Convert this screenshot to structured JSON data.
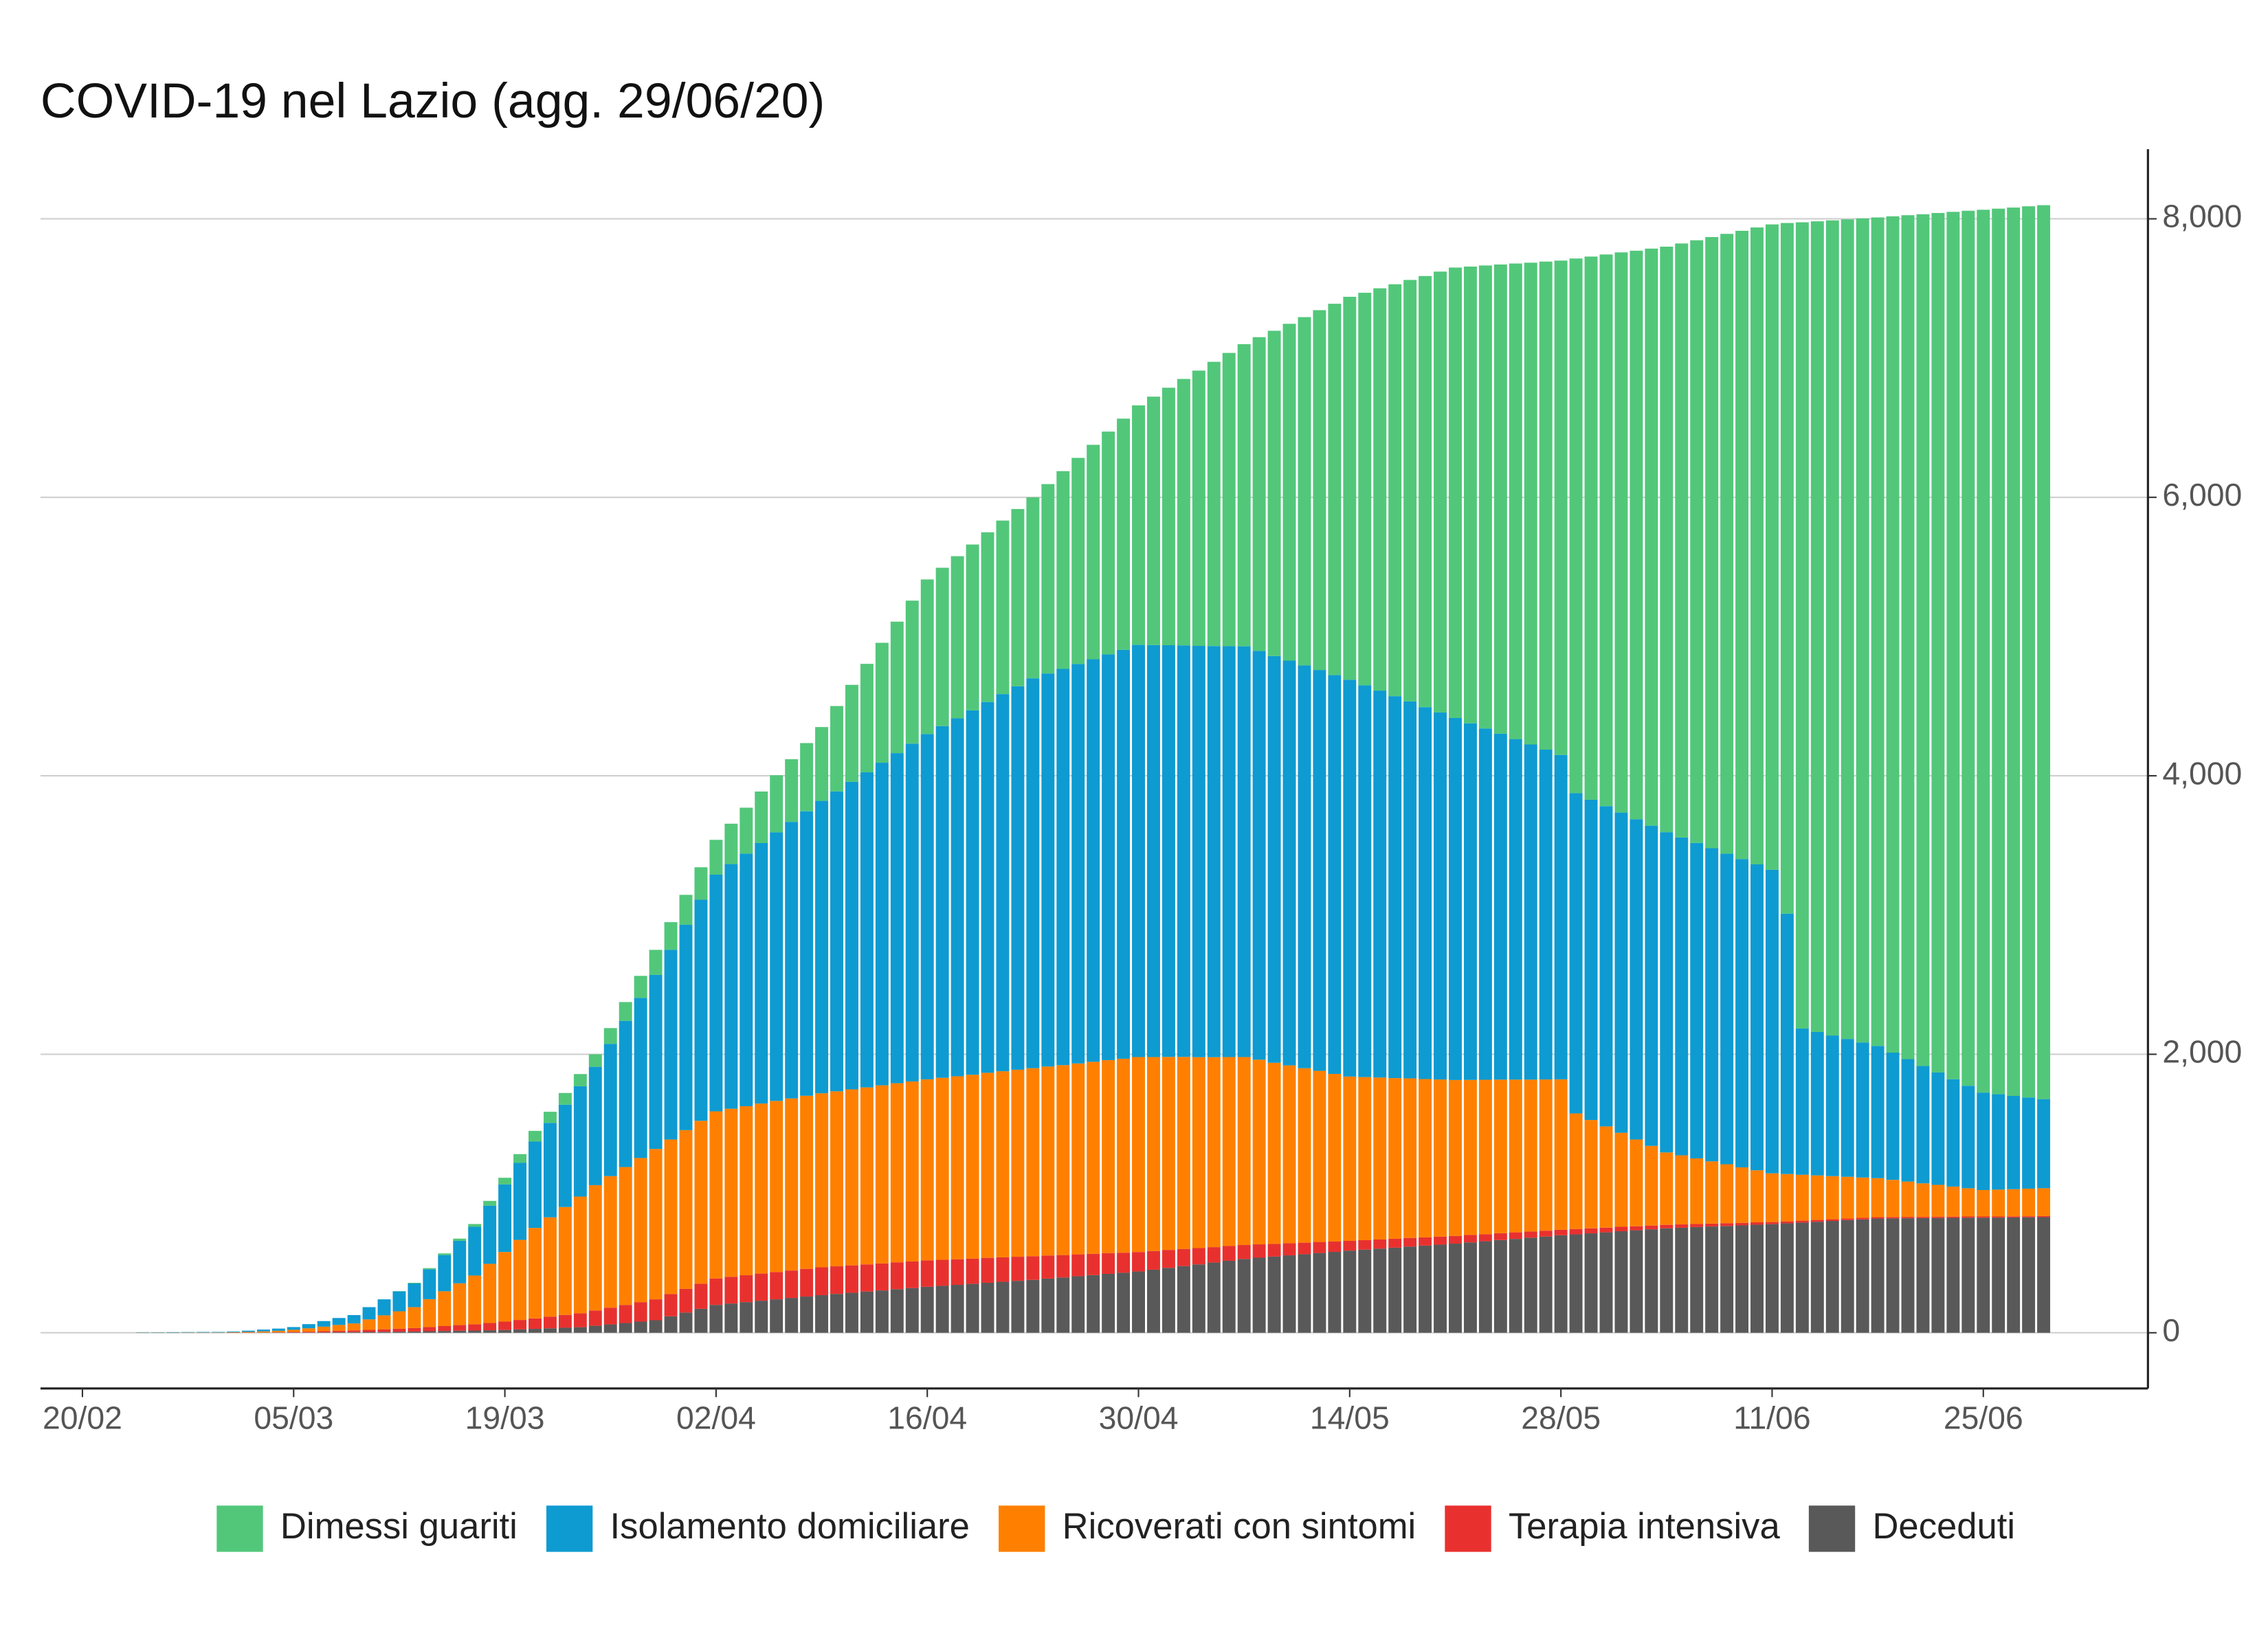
{
  "chart_data": {
    "type": "stacked_bar",
    "title": "COVID-19 nel Lazio (agg. 29/06/20)",
    "categories": [
      "20/02",
      "21/02",
      "22/02",
      "23/02",
      "24/02",
      "25/02",
      "26/02",
      "27/02",
      "28/02",
      "29/02",
      "01/03",
      "02/03",
      "03/03",
      "04/03",
      "05/03",
      "06/03",
      "07/03",
      "08/03",
      "09/03",
      "10/03",
      "11/03",
      "12/03",
      "13/03",
      "14/03",
      "15/03",
      "16/03",
      "17/03",
      "18/03",
      "19/03",
      "20/03",
      "21/03",
      "22/03",
      "23/03",
      "24/03",
      "25/03",
      "26/03",
      "27/03",
      "28/03",
      "29/03",
      "30/03",
      "31/03",
      "01/04",
      "02/04",
      "03/04",
      "04/04",
      "05/04",
      "06/04",
      "07/04",
      "08/04",
      "09/04",
      "10/04",
      "11/04",
      "12/04",
      "13/04",
      "14/04",
      "15/04",
      "16/04",
      "17/04",
      "18/04",
      "19/04",
      "20/04",
      "21/04",
      "22/04",
      "23/04",
      "24/04",
      "25/04",
      "26/04",
      "27/04",
      "28/04",
      "29/04",
      "30/04",
      "01/05",
      "02/05",
      "03/05",
      "04/05",
      "05/05",
      "06/05",
      "07/05",
      "08/05",
      "09/05",
      "10/05",
      "11/05",
      "12/05",
      "13/05",
      "14/05",
      "15/05",
      "16/05",
      "17/05",
      "18/05",
      "19/05",
      "20/05",
      "21/05",
      "22/05",
      "23/05",
      "24/05",
      "25/05",
      "26/05",
      "27/05",
      "28/05",
      "29/05",
      "30/05",
      "31/05",
      "01/06",
      "02/06",
      "03/06",
      "04/06",
      "05/06",
      "06/06",
      "07/06",
      "08/06",
      "09/06",
      "10/06",
      "11/06",
      "12/06",
      "13/06",
      "14/06",
      "15/06",
      "16/06",
      "17/06",
      "18/06",
      "19/06",
      "20/06",
      "21/06",
      "22/06",
      "23/06",
      "24/06",
      "25/06",
      "26/06",
      "27/06",
      "28/06",
      "29/06"
    ],
    "xticks": [
      "20/02",
      "05/03",
      "19/03",
      "02/04",
      "16/04",
      "30/04",
      "14/05",
      "28/05",
      "11/06",
      "25/06"
    ],
    "ylim": [
      -400,
      8500
    ],
    "yticks": [
      0,
      {
        "value": 2000,
        "label": "2,000"
      },
      {
        "value": 4000,
        "label": "4,000"
      },
      {
        "value": 6000,
        "label": "6,000"
      },
      {
        "value": 8000,
        "label": "8,000"
      }
    ],
    "y_axis_side": "right",
    "grid": true,
    "legend_position": "bottom",
    "series": [
      {
        "name": "Dimessi guariti",
        "color": "#52c77a",
        "values": [
          null,
          null,
          null,
          null,
          0,
          0,
          0,
          0,
          0,
          0,
          0,
          0,
          0,
          0,
          0,
          0,
          0,
          0,
          0,
          0,
          0,
          2,
          5,
          8,
          12,
          16,
          20,
          34,
          48,
          63,
          77,
          80,
          84,
          87,
          90,
          113,
          135,
          158,
          180,
          198,
          215,
          233,
          250,
          290,
          330,
          370,
          410,
          450,
          490,
          530,
          613,
          696,
          779,
          861,
          944,
          1027,
          1110,
          1137,
          1164,
          1191,
          1219,
          1246,
          1273,
          1300,
          1360,
          1420,
          1480,
          1540,
          1600,
          1660,
          1720,
          1784,
          1849,
          1913,
          1977,
          2041,
          2106,
          2170,
          2253,
          2336,
          2419,
          2501,
          2584,
          2667,
          2750,
          2819,
          2889,
          2958,
          3027,
          3096,
          3166,
          3235,
          3280,
          3325,
          3370,
          3415,
          3460,
          3505,
          3550,
          3840,
          3901,
          3962,
          4023,
          4083,
          4144,
          4205,
          4266,
          4328,
          4389,
          4451,
          4512,
          4574,
          4635,
          4960,
          5790,
          5822,
          5854,
          5886,
          5918,
          5950,
          6006,
          6061,
          6117,
          6173,
          6229,
          6284,
          6340,
          6360,
          6380,
          6400,
          6420
        ]
      },
      {
        "name": "Isolamento domiciliare",
        "color": "#0e9bd1",
        "values": [
          null,
          null,
          null,
          null,
          2,
          2,
          3,
          3,
          4,
          4,
          5,
          9,
          13,
          16,
          20,
          30,
          40,
          50,
          60,
          88,
          115,
          143,
          170,
          215,
          260,
          305,
          350,
          418,
          485,
          553,
          620,
          678,
          735,
          793,
          850,
          950,
          1050,
          1150,
          1250,
          1363,
          1475,
          1588,
          1700,
          1757,
          1814,
          1871,
          1929,
          1986,
          2043,
          2100,
          2154,
          2209,
          2263,
          2317,
          2371,
          2426,
          2480,
          2526,
          2571,
          2617,
          2663,
          2709,
          2754,
          2800,
          2823,
          2846,
          2869,
          2891,
          2914,
          2937,
          2960,
          2959,
          2957,
          2956,
          2954,
          2953,
          2951,
          2950,
          2936,
          2921,
          2907,
          2893,
          2879,
          2864,
          2850,
          2814,
          2779,
          2743,
          2707,
          2671,
          2636,
          2600,
          2561,
          2523,
          2484,
          2446,
          2407,
          2369,
          2330,
          2300,
          2300,
          2300,
          2300,
          2300,
          2300,
          2300,
          2283,
          2266,
          2249,
          2231,
          2214,
          2197,
          2180,
          1870,
          1050,
          1030,
          1010,
          990,
          970,
          950,
          914,
          879,
          843,
          807,
          771,
          736,
          700,
          685,
          670,
          655,
          640
        ]
      },
      {
        "name": "Ricoverati con sintomi",
        "color": "#ff8000",
        "values": [
          null,
          null,
          null,
          null,
          1,
          1,
          1,
          2,
          2,
          2,
          3,
          5,
          8,
          11,
          15,
          24,
          33,
          42,
          50,
          75,
          100,
          125,
          150,
          200,
          250,
          300,
          350,
          425,
          500,
          575,
          650,
          713,
          775,
          838,
          900,
          945,
          990,
          1035,
          1080,
          1110,
          1140,
          1170,
          1200,
          1207,
          1214,
          1221,
          1229,
          1236,
          1243,
          1250,
          1257,
          1264,
          1271,
          1279,
          1286,
          1293,
          1300,
          1307,
          1314,
          1321,
          1329,
          1336,
          1343,
          1350,
          1357,
          1364,
          1371,
          1379,
          1386,
          1393,
          1400,
          1393,
          1386,
          1379,
          1371,
          1364,
          1357,
          1350,
          1326,
          1301,
          1277,
          1253,
          1229,
          1204,
          1180,
          1171,
          1163,
          1154,
          1146,
          1137,
          1129,
          1120,
          1114,
          1109,
          1103,
          1097,
          1091,
          1086,
          1080,
          830,
          778,
          727,
          675,
          623,
          572,
          520,
          496,
          471,
          447,
          423,
          399,
          374,
          350,
          340,
          330,
          320,
          310,
          300,
          290,
          280,
          267,
          254,
          241,
          229,
          216,
          203,
          190,
          193,
          195,
          198,
          200
        ]
      },
      {
        "name": "Terapia intensiva",
        "color": "#e8312f",
        "values": [
          null,
          null,
          null,
          null,
          0,
          0,
          0,
          0,
          0,
          0,
          1,
          1,
          1,
          2,
          4,
          6,
          8,
          10,
          12,
          15,
          18,
          21,
          25,
          30,
          35,
          40,
          45,
          52,
          60,
          68,
          75,
          84,
          92,
          100,
          110,
          120,
          130,
          140,
          150,
          160,
          170,
          180,
          190,
          192,
          193,
          195,
          196,
          197,
          199,
          200,
          198,
          197,
          195,
          194,
          193,
          191,
          190,
          187,
          184,
          181,
          179,
          176,
          173,
          170,
          166,
          161,
          157,
          153,
          149,
          144,
          140,
          134,
          129,
          123,
          117,
          111,
          106,
          100,
          96,
          91,
          87,
          83,
          79,
          74,
          70,
          68,
          66,
          64,
          62,
          59,
          57,
          55,
          53,
          51,
          49,
          47,
          44,
          42,
          40,
          38,
          36,
          34,
          32,
          29,
          27,
          25,
          24,
          22,
          21,
          20,
          18,
          17,
          15,
          14,
          14,
          13,
          12,
          11,
          11,
          10,
          10,
          10,
          9,
          9,
          9,
          9,
          9,
          8,
          8,
          8,
          8
        ]
      },
      {
        "name": "Deceduti",
        "color": "#595959",
        "values": [
          null,
          null,
          null,
          null,
          0,
          0,
          0,
          0,
          0,
          0,
          0,
          0,
          1,
          1,
          2,
          2,
          3,
          4,
          5,
          6,
          7,
          8,
          9,
          11,
          13,
          15,
          16,
          18,
          20,
          24,
          28,
          32,
          36,
          40,
          50,
          60,
          70,
          80,
          90,
          118,
          145,
          172,
          200,
          210,
          220,
          230,
          240,
          250,
          260,
          270,
          279,
          287,
          296,
          304,
          313,
          321,
          330,
          337,
          344,
          351,
          359,
          366,
          373,
          380,
          389,
          397,
          406,
          414,
          423,
          431,
          440,
          453,
          466,
          479,
          491,
          504,
          517,
          530,
          539,
          547,
          556,
          564,
          573,
          581,
          590,
          597,
          604,
          611,
          619,
          626,
          633,
          640,
          649,
          657,
          666,
          674,
          683,
          691,
          700,
          707,
          714,
          721,
          729,
          736,
          743,
          750,
          754,
          759,
          763,
          767,
          771,
          776,
          780,
          786,
          791,
          797,
          803,
          809,
          814,
          820,
          821,
          822,
          823,
          824,
          825,
          826,
          826,
          827,
          828,
          829,
          830
        ]
      }
    ]
  }
}
